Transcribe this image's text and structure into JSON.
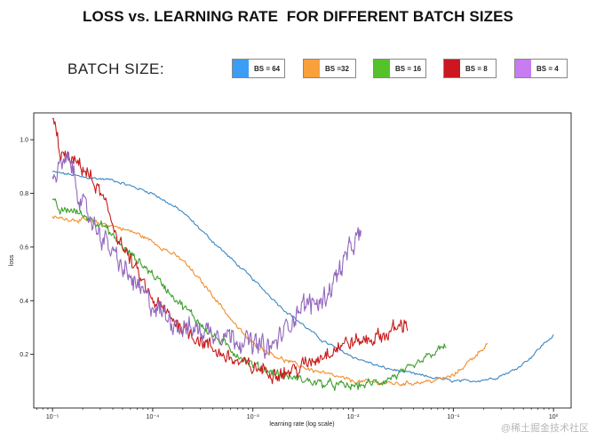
{
  "title": "LOSS vs. LEARNING RATE  FOR DIFFERENT BATCH SIZES",
  "legend_heading": "BATCH SIZE:",
  "legend": [
    {
      "label": "BS = 64",
      "color": "#3d9df5"
    },
    {
      "label": "BS =32",
      "color": "#f7a03c"
    },
    {
      "label": "BS = 16",
      "color": "#55c22a"
    },
    {
      "label": "BS = 8",
      "color": "#cc1620"
    },
    {
      "label": "BS = 4",
      "color": "#c77cf0"
    }
  ],
  "watermark": "@稀土掘金技术社区",
  "chart_data": {
    "type": "line",
    "title": "LOSS vs. LEARNING RATE  FOR DIFFERENT BATCH SIZES",
    "xlabel": "learning rate (log scale)",
    "ylabel": "loss",
    "xscale": "log",
    "xlim": [
      6.5e-06,
      1.5
    ],
    "ylim": [
      0.0,
      1.1
    ],
    "x_ticks": [
      {
        "value": 1e-05,
        "label": "10⁻⁵"
      },
      {
        "value": 0.0001,
        "label": "10⁻⁴"
      },
      {
        "value": 0.001,
        "label": "10⁻³"
      },
      {
        "value": 0.01,
        "label": "10⁻²"
      },
      {
        "value": 0.1,
        "label": "10⁻¹"
      },
      {
        "value": 1,
        "label": "10⁰"
      }
    ],
    "y_ticks": [
      0.2,
      0.4,
      0.6,
      0.8,
      1.0
    ],
    "grid": false,
    "series": [
      {
        "name": "BS = 64",
        "color": "#3b87c2",
        "noise": 0.004,
        "x_end": 1.0,
        "points": [
          [
            1e-05,
            0.88
          ],
          [
            1.5e-05,
            0.87
          ],
          [
            2e-05,
            0.86
          ],
          [
            4e-05,
            0.85
          ],
          [
            0.0001,
            0.8
          ],
          [
            0.0002,
            0.73
          ],
          [
            0.0004,
            0.62
          ],
          [
            0.001,
            0.48
          ],
          [
            0.002,
            0.37
          ],
          [
            0.005,
            0.25
          ],
          [
            0.01,
            0.19
          ],
          [
            0.02,
            0.15
          ],
          [
            0.05,
            0.12
          ],
          [
            0.1,
            0.1
          ],
          [
            0.15,
            0.1
          ],
          [
            0.25,
            0.11
          ],
          [
            0.4,
            0.14
          ],
          [
            0.6,
            0.19
          ],
          [
            0.8,
            0.24
          ],
          [
            1.0,
            0.27
          ]
        ]
      },
      {
        "name": "BS =32",
        "color": "#f28e2b",
        "noise": 0.006,
        "x_end": 0.22,
        "points": [
          [
            1e-05,
            0.71
          ],
          [
            2e-05,
            0.7
          ],
          [
            4e-05,
            0.68
          ],
          [
            7e-05,
            0.65
          ],
          [
            0.0001,
            0.62
          ],
          [
            0.0002,
            0.55
          ],
          [
            0.0004,
            0.42
          ],
          [
            0.0007,
            0.3
          ],
          [
            0.001,
            0.24
          ],
          [
            0.002,
            0.18
          ],
          [
            0.004,
            0.14
          ],
          [
            0.01,
            0.1
          ],
          [
            0.03,
            0.09
          ],
          [
            0.06,
            0.1
          ],
          [
            0.1,
            0.12
          ],
          [
            0.15,
            0.18
          ],
          [
            0.22,
            0.24
          ]
        ]
      },
      {
        "name": "BS = 16",
        "color": "#3da02c",
        "noise": 0.012,
        "x_end": 0.085,
        "points": [
          [
            1e-05,
            0.77
          ],
          [
            1.2e-05,
            0.73
          ],
          [
            1.5e-05,
            0.74
          ],
          [
            2e-05,
            0.72
          ],
          [
            3e-05,
            0.69
          ],
          [
            5e-05,
            0.6
          ],
          [
            0.0001,
            0.5
          ],
          [
            0.0002,
            0.38
          ],
          [
            0.0004,
            0.27
          ],
          [
            0.0007,
            0.2
          ],
          [
            0.001,
            0.16
          ],
          [
            0.002,
            0.12
          ],
          [
            0.005,
            0.09
          ],
          [
            0.01,
            0.08
          ],
          [
            0.02,
            0.1
          ],
          [
            0.04,
            0.15
          ],
          [
            0.06,
            0.2
          ],
          [
            0.085,
            0.23
          ]
        ]
      },
      {
        "name": "BS = 8",
        "color": "#c81b1b",
        "noise": 0.022,
        "x_end": 0.035,
        "points": [
          [
            1e-05,
            1.08
          ],
          [
            1.2e-05,
            0.95
          ],
          [
            1.5e-05,
            0.92
          ],
          [
            2e-05,
            0.9
          ],
          [
            3e-05,
            0.8
          ],
          [
            5e-05,
            0.6
          ],
          [
            0.0001,
            0.4
          ],
          [
            0.0002,
            0.3
          ],
          [
            0.0004,
            0.22
          ],
          [
            0.0007,
            0.17
          ],
          [
            0.001,
            0.15
          ],
          [
            0.002,
            0.13
          ],
          [
            0.003,
            0.15
          ],
          [
            0.005,
            0.2
          ],
          [
            0.008,
            0.24
          ],
          [
            0.012,
            0.25
          ],
          [
            0.02,
            0.27
          ],
          [
            0.035,
            0.32
          ]
        ]
      },
      {
        "name": "BS = 4",
        "color": "#9368be",
        "noise": 0.03,
        "x_end": 0.012,
        "points": [
          [
            1e-05,
            0.85
          ],
          [
            1.2e-05,
            0.9
          ],
          [
            1.5e-05,
            0.92
          ],
          [
            2e-05,
            0.75
          ],
          [
            3e-05,
            0.65
          ],
          [
            5e-05,
            0.52
          ],
          [
            0.0001,
            0.38
          ],
          [
            0.0002,
            0.3
          ],
          [
            0.0005,
            0.28
          ],
          [
            0.001,
            0.24
          ],
          [
            0.0015,
            0.22
          ],
          [
            0.002,
            0.28
          ],
          [
            0.003,
            0.38
          ],
          [
            0.005,
            0.4
          ],
          [
            0.007,
            0.5
          ],
          [
            0.009,
            0.58
          ],
          [
            0.012,
            0.65
          ]
        ]
      }
    ]
  }
}
